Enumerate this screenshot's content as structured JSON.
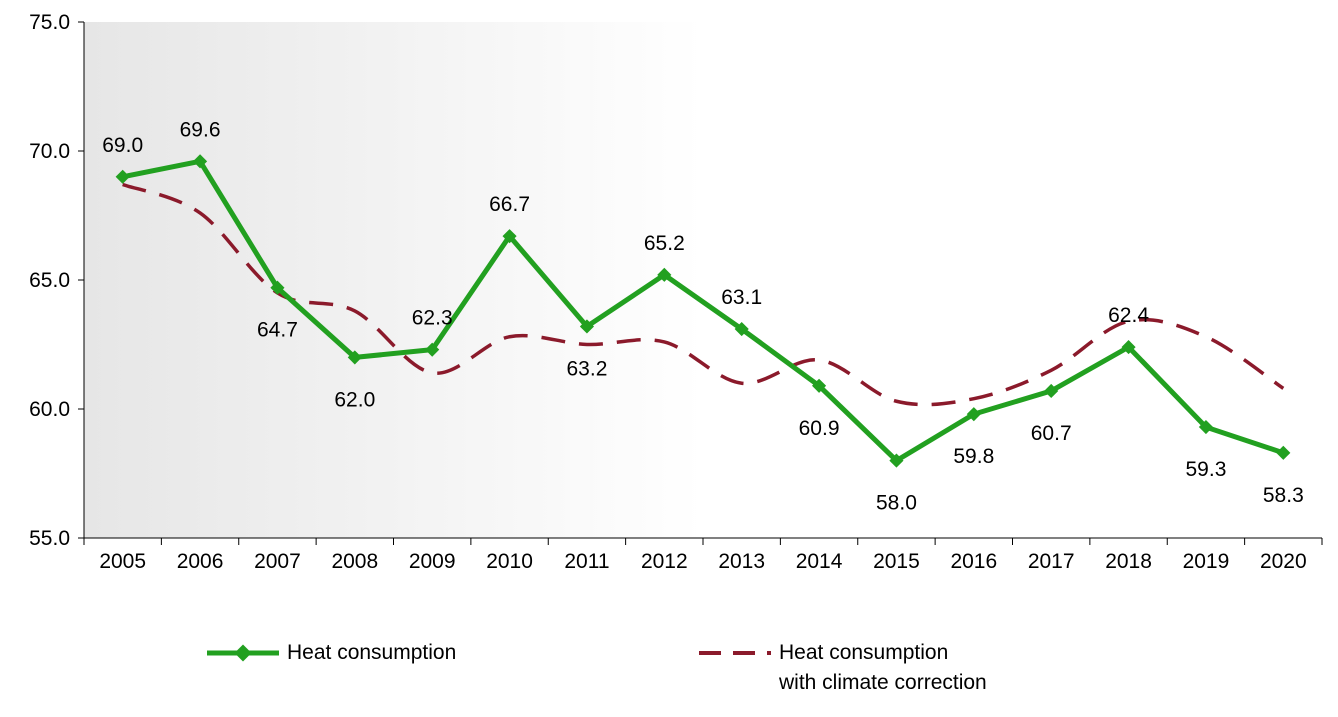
{
  "chart_data": {
    "type": "line",
    "categories": [
      "2005",
      "2006",
      "2007",
      "2008",
      "2009",
      "2010",
      "2011",
      "2012",
      "2013",
      "2014",
      "2015",
      "2016",
      "2017",
      "2018",
      "2019",
      "2020"
    ],
    "ylim": [
      55,
      75
    ],
    "yticks": [
      "55.0",
      "60.0",
      "65.0",
      "70.0",
      "75.0"
    ],
    "grid": false,
    "legend_position": "bottom",
    "series": [
      {
        "name": "Heat consumption",
        "color": "#22a020",
        "style": "solid",
        "marker": "diamond",
        "values": [
          69.0,
          69.6,
          64.7,
          62.0,
          62.3,
          66.7,
          63.2,
          65.2,
          63.1,
          60.9,
          58.0,
          59.8,
          60.7,
          62.4,
          59.3,
          58.3
        ],
        "labels": [
          "69.0",
          "69.6",
          "64.7",
          "62.0",
          "62.3",
          "66.7",
          "63.2",
          "65.2",
          "63.1",
          "60.9",
          "58.0",
          "59.8",
          "60.7",
          "62.4",
          "59.3",
          "58.3"
        ]
      },
      {
        "name": "Heat consumption\nwith climate correction",
        "color": "#8b1a2b",
        "style": "dashed",
        "values": [
          68.7,
          67.6,
          64.5,
          63.8,
          61.4,
          62.8,
          62.5,
          62.6,
          61.0,
          61.9,
          60.3,
          60.4,
          61.5,
          63.4,
          62.8,
          60.8
        ]
      }
    ]
  }
}
